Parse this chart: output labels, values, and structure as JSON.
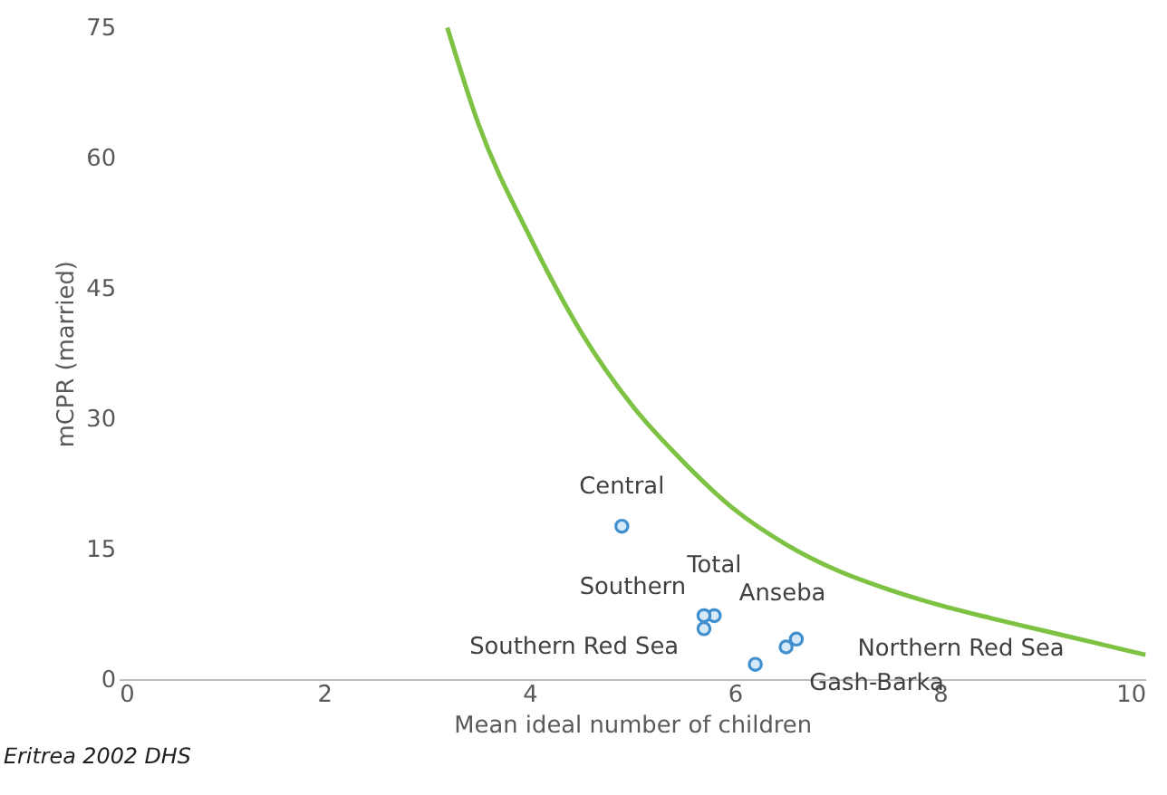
{
  "chart_data": {
    "type": "scatter",
    "xlabel": "Mean ideal number of children",
    "ylabel": "mCPR (married)",
    "xlim": [
      0,
      10
    ],
    "xticks": [
      0,
      2,
      4,
      6,
      8,
      10
    ],
    "ylim": [
      0,
      75
    ],
    "yticks": [
      0,
      15,
      30,
      45,
      60,
      75
    ],
    "grid": false,
    "series": [
      {
        "type": "scatter",
        "marker": "circle",
        "color": "#3f8fcf",
        "x": [
          4.9,
          5.8,
          5.7,
          5.7,
          6.5,
          6.6,
          6.2
        ],
        "values": [
          17.6,
          7.3,
          7.3,
          5.8,
          3.7,
          4.6,
          1.7
        ]
      },
      {
        "type": "line",
        "color": "#7dc242",
        "x": [
          3.2,
          3.5,
          4,
          4.5,
          5,
          5.5,
          6,
          6.5,
          7,
          7.5,
          8,
          8.5,
          9,
          9.5,
          10
        ],
        "values": [
          75,
          64,
          51,
          40,
          31.5,
          25,
          19.5,
          15.5,
          12.5,
          10.3,
          8.5,
          7,
          5.6,
          4.2,
          2.8
        ]
      }
    ],
    "annotations": [
      {
        "text": "Central",
        "x": 4.9,
        "y": 17.6
      },
      {
        "text": "Total",
        "x": 5.8,
        "y": 7.3
      },
      {
        "text": "Southern",
        "x": 5.7,
        "y": 7.3
      },
      {
        "text": "Southern Red Sea",
        "x": 5.7,
        "y": 5.8
      },
      {
        "text": "Anseba",
        "x": 6.5,
        "y": 3.7
      },
      {
        "text": "Northern Red Sea",
        "x": 6.6,
        "y": 4.6
      },
      {
        "text": "Gash-Barka",
        "x": 6.2,
        "y": 1.7
      },
      "Eritrea 2002  DHS"
    ]
  }
}
